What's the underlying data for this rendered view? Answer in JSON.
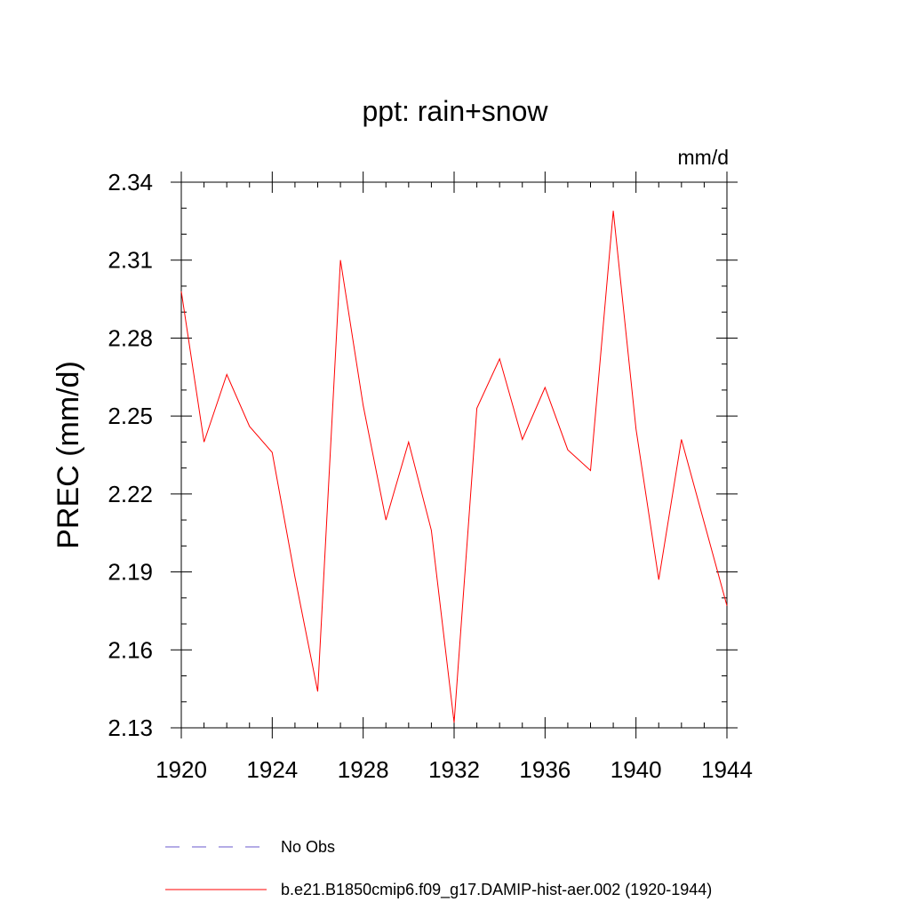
{
  "chart_data": {
    "type": "line",
    "title": "ppt: rain+snow",
    "units": "mm/d",
    "ylabel": "PREC  (mm/d)",
    "xlabel": "",
    "xlim": [
      1920,
      1944
    ],
    "ylim": [
      2.13,
      2.34
    ],
    "xticks": [
      "1920",
      "1924",
      "1928",
      "1932",
      "1936",
      "1940",
      "1944"
    ],
    "yticks": [
      "2.13",
      "2.16",
      "2.19",
      "2.22",
      "2.25",
      "2.28",
      "2.31",
      "2.34"
    ],
    "grid": false,
    "legend_position": "bottom",
    "legend": [
      {
        "name": "No Obs",
        "color": "#6a5acd",
        "style": "dashed"
      },
      {
        "name": "b.e21.B1850cmip6.f09_g17.DAMIP-hist-aer.002 (1920-1944)",
        "color": "#ff0000",
        "style": "solid"
      }
    ],
    "series": [
      {
        "name": "b.e21.B1850cmip6.f09_g17.DAMIP-hist-aer.002 (1920-1944)",
        "color": "#ff0000",
        "x": [
          1920,
          1921,
          1922,
          1923,
          1924,
          1925,
          1926,
          1927,
          1928,
          1929,
          1930,
          1931,
          1932,
          1933,
          1934,
          1935,
          1936,
          1937,
          1938,
          1939,
          1940,
          1941,
          1942,
          1943,
          1944
        ],
        "y": [
          2.298,
          2.24,
          2.266,
          2.246,
          2.236,
          2.188,
          2.144,
          2.31,
          2.254,
          2.21,
          2.24,
          2.206,
          2.132,
          2.253,
          2.272,
          2.241,
          2.261,
          2.237,
          2.229,
          2.329,
          2.245,
          2.187,
          2.241,
          2.209,
          2.177
        ]
      }
    ]
  }
}
